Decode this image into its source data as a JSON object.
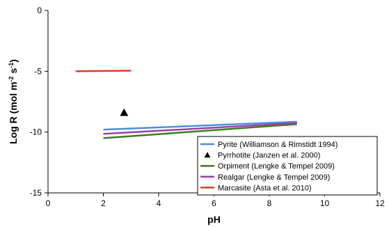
{
  "chart_data": {
    "type": "line",
    "xlabel": "pH",
    "ylabel_main": "Log R (mol m",
    "ylabel_sup1": "-2",
    "ylabel_mid": " s",
    "ylabel_sup2": "-1",
    "ylabel_end": ")",
    "xlim": [
      0,
      12
    ],
    "ylim": [
      -15,
      0
    ],
    "xticks": [
      0,
      2,
      4,
      6,
      8,
      10,
      12
    ],
    "yticks": [
      0,
      -5,
      -10,
      -15
    ],
    "grid": false,
    "legend_position": "bottom-right",
    "series": [
      {
        "name": "Pyrite (Williamson & Rimstidt 1994)",
        "kind": "line",
        "color": "#4a90d9",
        "x": [
          2,
          9
        ],
        "y": [
          -9.8,
          -9.15
        ]
      },
      {
        "name": "Pyrrhotite (Janzen et al. 2000)",
        "kind": "marker",
        "marker": "triangle",
        "color": "#000000",
        "x": [
          2.75
        ],
        "y": [
          -8.4
        ]
      },
      {
        "name": "Orpiment (Lengke & Tempel 2009)",
        "kind": "line",
        "color": "#3a7d1f",
        "x": [
          2,
          9
        ],
        "y": [
          -10.5,
          -9.35
        ]
      },
      {
        "name": "Realgar (Lengke & Tempel 2009)",
        "kind": "line",
        "color": "#9b3fa7",
        "x": [
          2,
          9
        ],
        "y": [
          -10.15,
          -9.25
        ]
      },
      {
        "name": "Marcasite (Asta et al. 2010)",
        "kind": "line",
        "color": "#e0392b",
        "x": [
          1,
          3
        ],
        "y": [
          -5.0,
          -4.95
        ]
      }
    ]
  }
}
